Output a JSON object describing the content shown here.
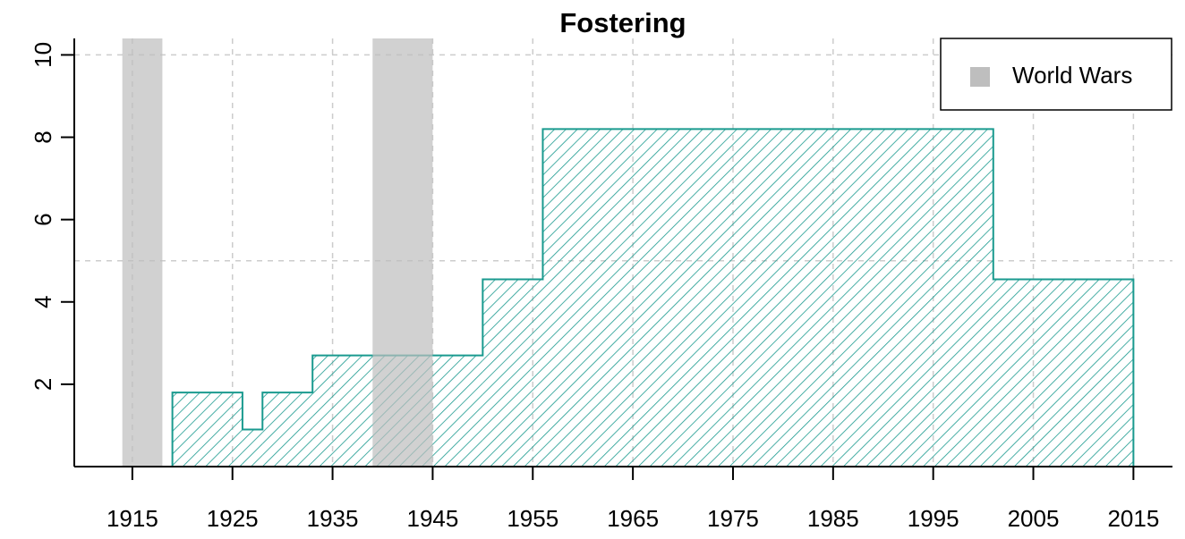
{
  "chart_data": {
    "type": "step",
    "title": "Fostering",
    "x_edges": [
      1919,
      1926,
      1928,
      1933,
      1950,
      1956,
      2001,
      2015
    ],
    "values": [
      1.8,
      0.9,
      1.8,
      2.7,
      4.55,
      8.2,
      4.55
    ],
    "color": "#1a9a8f",
    "shaded_periods": {
      "name": "World Wars",
      "color": "#bebebe",
      "ranges": [
        [
          1914,
          1918
        ],
        [
          1939,
          1945
        ]
      ]
    },
    "xlim": [
      1909.2,
      2018.9
    ],
    "ylim": [
      0,
      10.4
    ],
    "xticks": [
      1915,
      1925,
      1935,
      1945,
      1955,
      1965,
      1975,
      1985,
      1995,
      2005,
      2015
    ],
    "yticks": [
      2,
      4,
      6,
      8,
      10
    ],
    "ygrid": [
      5,
      10
    ],
    "grid": true,
    "legend": "top-right"
  }
}
